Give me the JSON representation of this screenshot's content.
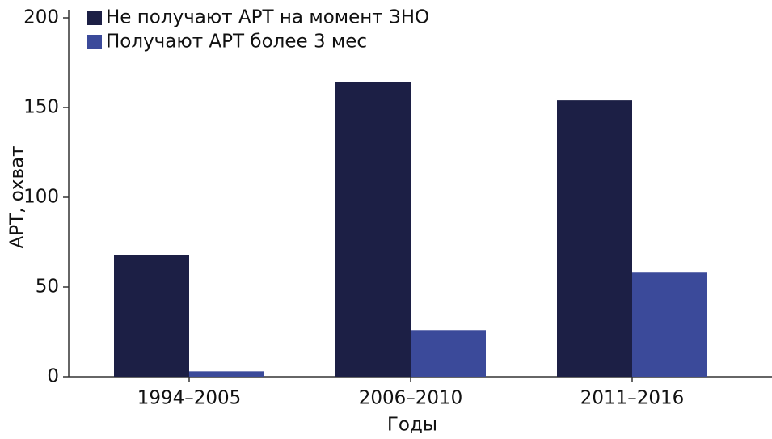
{
  "chart_data": {
    "type": "bar",
    "categories": [
      "1994–2005",
      "2006–2010",
      "2011–2016"
    ],
    "series": [
      {
        "name": "Не получают АРТ на момент ЗНО",
        "color": "#1c1f45",
        "values": [
          68,
          164,
          154
        ]
      },
      {
        "name": "Получают АРТ более 3 мес",
        "color": "#3b4a9a",
        "values": [
          3,
          26,
          58
        ]
      }
    ],
    "x_label": "Годы",
    "y_label": "АРТ, охват",
    "ylim": [
      0,
      200
    ],
    "yticks": [
      0,
      50,
      100,
      150,
      200
    ],
    "grid": false,
    "legend": "top-left"
  }
}
